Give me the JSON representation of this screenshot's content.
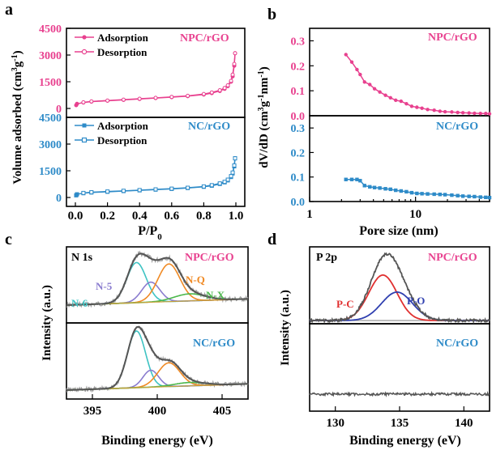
{
  "colors": {
    "npc": "#e8418f",
    "nc": "#2e8bc8",
    "pink_axis": "#e8418f",
    "blue_axis": "#2e8bc8",
    "raw": "#a0a0a0",
    "envelope": "#555555",
    "n6": "#3ec3c3",
    "n5": "#8a7ccf",
    "nq": "#f08a24",
    "nx": "#4cb84c",
    "pc": "#e03030",
    "po": "#3040b0",
    "p_base": "#999999",
    "nc_p": "#555555"
  },
  "chart_data": [
    {
      "panel": "a",
      "type": "line",
      "xlabel": "P/P0",
      "ylabel": "Volume adsorbed (cm3g-1)",
      "xticks": [
        "0.0",
        "0.2",
        "0.4",
        "0.6",
        "0.8",
        "1.0"
      ],
      "xlim": [
        0,
        1
      ],
      "subplots": [
        {
          "tag": "NPC/rGO",
          "yticks": [
            "0",
            "1500",
            "3000",
            "4500"
          ],
          "ylim": [
            -500,
            4500
          ],
          "series": [
            {
              "name": "Adsorption",
              "x": [
                0.005,
                0.01,
                0.05,
                0.1,
                0.2,
                0.3,
                0.4,
                0.5,
                0.6,
                0.7,
                0.8,
                0.85,
                0.9,
                0.93,
                0.95,
                0.97,
                0.98,
                0.99,
                0.995
              ],
              "y": [
                180,
                260,
                330,
                380,
                430,
                480,
                530,
                580,
                630,
                690,
                780,
                860,
                980,
                1100,
                1250,
                1500,
                1800,
                2400,
                3100
              ]
            },
            {
              "name": "Desorption",
              "x": [
                0.995,
                0.99,
                0.98,
                0.97,
                0.95,
                0.93,
                0.9,
                0.85,
                0.8,
                0.7,
                0.6,
                0.5,
                0.4,
                0.3,
                0.2,
                0.1,
                0.05
              ],
              "y": [
                3100,
                2500,
                1900,
                1550,
                1300,
                1150,
                1020,
                900,
                810,
                710,
                650,
                595,
                545,
                495,
                445,
                395,
                345
              ]
            }
          ]
        },
        {
          "tag": "NC/rGO",
          "yticks": [
            "0",
            "1500",
            "3000",
            "4500"
          ],
          "ylim": [
            -500,
            4500
          ],
          "series": [
            {
              "name": "Adsorption",
              "x": [
                0.005,
                0.01,
                0.05,
                0.1,
                0.2,
                0.3,
                0.4,
                0.5,
                0.6,
                0.7,
                0.8,
                0.85,
                0.9,
                0.93,
                0.95,
                0.97,
                0.98,
                0.99,
                0.995
              ],
              "y": [
                120,
                180,
                240,
                280,
                320,
                360,
                400,
                440,
                480,
                530,
                600,
                660,
                760,
                850,
                960,
                1150,
                1350,
                1750,
                2200
              ]
            },
            {
              "name": "Desorption",
              "x": [
                0.995,
                0.99,
                0.98,
                0.97,
                0.95,
                0.93,
                0.9,
                0.85,
                0.8,
                0.7,
                0.6,
                0.5,
                0.4,
                0.3,
                0.2,
                0.1,
                0.05
              ],
              "y": [
                2200,
                1800,
                1400,
                1200,
                1000,
                880,
                790,
                690,
                620,
                545,
                495,
                455,
                415,
                375,
                335,
                295,
                255
              ]
            }
          ]
        }
      ]
    },
    {
      "panel": "b",
      "type": "line",
      "xlabel": "Pore size (nm)",
      "ylabel": "dV/dD (cm3g-1nm-1)",
      "xscale": "log",
      "xlim": [
        1,
        50
      ],
      "xticks": [
        "1",
        "10"
      ],
      "subplots": [
        {
          "tag": "NPC/rGO",
          "yticks": [
            "0.0",
            "0.1",
            "0.2",
            "0.3"
          ],
          "ylim": [
            0,
            0.35
          ],
          "x": [
            2.2,
            2.5,
            2.8,
            3.0,
            3.3,
            3.7,
            4.1,
            4.6,
            5.2,
            5.8,
            6.5,
            7.3,
            8.2,
            9.2,
            10.3,
            11.5,
            13,
            15,
            17,
            19,
            22,
            25,
            28,
            32,
            36,
            41,
            46,
            50
          ],
          "y": [
            0.245,
            0.215,
            0.185,
            0.165,
            0.135,
            0.125,
            0.108,
            0.095,
            0.082,
            0.072,
            0.062,
            0.058,
            0.048,
            0.038,
            0.034,
            0.03,
            0.025,
            0.022,
            0.018,
            0.016,
            0.015,
            0.013,
            0.012,
            0.011,
            0.01,
            0.009,
            0.009,
            0.008
          ]
        },
        {
          "tag": "NC/rGO",
          "yticks": [
            "0.0",
            "0.1",
            "0.2",
            "0.3"
          ],
          "ylim": [
            0,
            0.35
          ],
          "x": [
            2.2,
            2.5,
            2.8,
            3.0,
            3.3,
            3.7,
            4.1,
            4.6,
            5.2,
            5.8,
            6.5,
            7.3,
            8.2,
            9.2,
            10.3,
            11.5,
            13,
            15,
            17,
            19,
            22,
            25,
            28,
            32,
            36,
            41,
            46,
            50
          ],
          "y": [
            0.09,
            0.09,
            0.09,
            0.085,
            0.065,
            0.06,
            0.057,
            0.055,
            0.052,
            0.05,
            0.046,
            0.043,
            0.04,
            0.036,
            0.033,
            0.032,
            0.031,
            0.03,
            0.029,
            0.028,
            0.026,
            0.024,
            0.022,
            0.021,
            0.02,
            0.018,
            0.017,
            0.016
          ]
        }
      ]
    },
    {
      "panel": "c",
      "type": "line",
      "title": "N 1s",
      "xlabel": "Binding energy (eV)",
      "ylabel": "Intensity (a.u.)",
      "xticks": [
        "395",
        "400",
        "405"
      ],
      "xlim": [
        393,
        407
      ],
      "subplots": [
        {
          "tag": "NPC/rGO",
          "peaks": [
            {
              "name": "N-6",
              "center": 398.4,
              "height": 0.8,
              "width": 0.75
            },
            {
              "name": "N-5",
              "center": 399.5,
              "height": 0.4,
              "width": 0.7
            },
            {
              "name": "N-Q",
              "center": 400.9,
              "height": 0.75,
              "width": 0.85
            },
            {
              "name": "N-X",
              "center": 402.5,
              "height": 0.14,
              "width": 1.2
            }
          ]
        },
        {
          "tag": "NC/rGO",
          "peaks": [
            {
              "name": "N-6",
              "center": 398.4,
              "height": 1.0,
              "width": 0.7
            },
            {
              "name": "N-5",
              "center": 399.5,
              "height": 0.3,
              "width": 0.6
            },
            {
              "name": "N-Q",
              "center": 400.9,
              "height": 0.42,
              "width": 0.85
            },
            {
              "name": "N-X",
              "center": 402.5,
              "height": 0.06,
              "width": 1.2
            }
          ]
        }
      ]
    },
    {
      "panel": "d",
      "type": "line",
      "title": "P 2p",
      "xlabel": "Binding energy (eV)",
      "ylabel": "Intensity (a.u.)",
      "xticks": [
        "130",
        "135",
        "140"
      ],
      "xlim": [
        128,
        142
      ],
      "subplots": [
        {
          "tag": "NPC/rGO",
          "peaks": [
            {
              "name": "P-C",
              "center": 133.7,
              "height": 0.72,
              "width": 1.1
            },
            {
              "name": "P-O",
              "center": 134.8,
              "height": 0.45,
              "width": 1.2
            }
          ]
        },
        {
          "tag": "NC/rGO",
          "peaks": []
        }
      ]
    }
  ],
  "labels": {
    "panel_a": "a",
    "panel_b": "b",
    "panel_c": "c",
    "panel_d": "d",
    "adsorption": "Adsorption",
    "desorption": "Desorption",
    "npc": "NPC/rGO",
    "nc": "NC/rGO",
    "n1s": "N 1s",
    "p2p": "P 2p",
    "n6": "N-6",
    "n5": "N-5",
    "nq": "N-Q",
    "nx": "N-X",
    "pc": "P-C",
    "po": "P-O",
    "pp0": "P/P",
    "pp0_sub": "0",
    "ylabel_a_main": "Volume adsorbed (cm",
    "ylabel_a_sup1": "3",
    "ylabel_a_mid": "g",
    "ylabel_a_sup2": "-1",
    "ylabel_a_end": ")",
    "ylabel_b_main": "dV/dD (cm",
    "ylabel_b_sup1": "3",
    "ylabel_b_g": "g",
    "ylabel_b_sup2": "-1",
    "ylabel_b_nm": "nm",
    "ylabel_b_sup3": "-1",
    "ylabel_b_end": ")",
    "pore_size": "Pore size (nm)",
    "binding_energy": "Binding energy (eV)",
    "intensity": "Intensity (a.u.)"
  }
}
